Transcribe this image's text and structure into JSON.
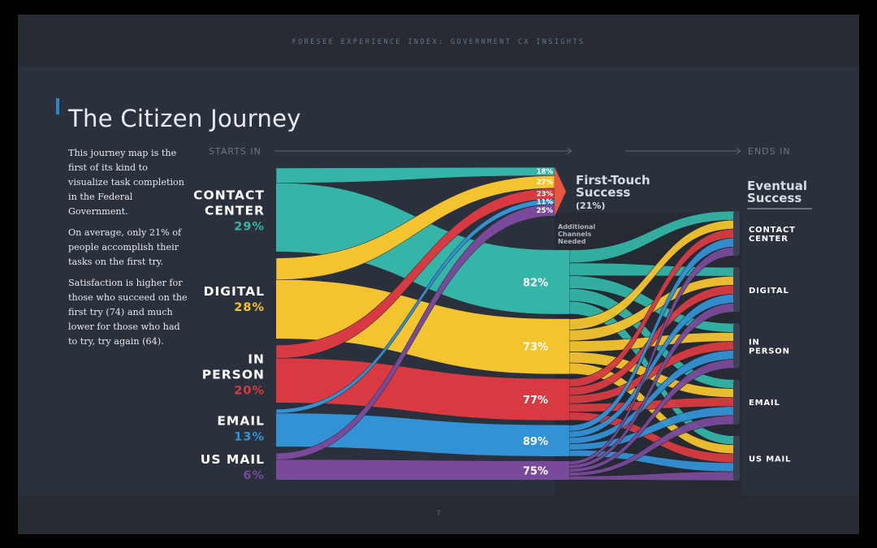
{
  "header": "FORESEE EXPERIENCE INDEX: GOVERNMENT CX INSIGHTS",
  "title": "The Citizen Journey",
  "description": [
    "This journey map is the first of its kind to visualize task completion in the Federal Government.",
    "On average, only 21% of people accomplish their tasks on the first try.",
    "Satisfaction is higher for those who succeed on the first try (74) and much lower for those who had to try, try again (64)."
  ],
  "page_number": "7",
  "labels": {
    "starts_in": "STARTS IN",
    "ends_in": "ENDS IN",
    "first_touch_title": [
      "First-Touch",
      "Success"
    ],
    "first_touch_pct": "(21%)",
    "additional": [
      "Additional",
      "Channels",
      "Needed"
    ],
    "eventual": [
      "Eventual",
      "Success"
    ]
  },
  "colors": {
    "contact_center": "#35b5a7",
    "digital": "#f4c430",
    "in_person": "#d93a41",
    "email": "#3392d4",
    "us_mail": "#7a4a9a",
    "slide_bg": "#2b313c"
  },
  "chart_data": {
    "type": "sankey",
    "sources": [
      {
        "name_lines": [
          "CONTACT",
          "CENTER"
        ],
        "share": "29%",
        "share_value": 29,
        "first_touch": "18%",
        "first_touch_value": 18,
        "additional": "82%",
        "additional_value": 82,
        "color": "#35b5a7"
      },
      {
        "name_lines": [
          "DIGITAL"
        ],
        "share": "28%",
        "share_value": 28,
        "first_touch": "27%",
        "first_touch_value": 27,
        "additional": "73%",
        "additional_value": 73,
        "color": "#f4c430"
      },
      {
        "name_lines": [
          "IN",
          "PERSON"
        ],
        "share": "20%",
        "share_value": 20,
        "first_touch": "23%",
        "first_touch_value": 23,
        "additional": "77%",
        "additional_value": 77,
        "color": "#d93a41"
      },
      {
        "name_lines": [
          "EMAIL"
        ],
        "share": "13%",
        "share_value": 13,
        "first_touch": "11%",
        "first_touch_value": 11,
        "additional": "89%",
        "additional_value": 89,
        "color": "#3392d4"
      },
      {
        "name_lines": [
          "US MAIL"
        ],
        "share": "6%",
        "share_value": 6,
        "first_touch": "25%",
        "first_touch_value": 25,
        "additional": "75%",
        "additional_value": 75,
        "color": "#7a4a9a"
      }
    ],
    "destinations": [
      {
        "name_lines": [
          "CONTACT",
          "CENTER"
        ]
      },
      {
        "name_lines": [
          "DIGITAL"
        ]
      },
      {
        "name_lines": [
          "IN",
          "PERSON"
        ]
      },
      {
        "name_lines": [
          "EMAIL"
        ]
      },
      {
        "name_lines": [
          "US MAIL"
        ]
      }
    ]
  }
}
